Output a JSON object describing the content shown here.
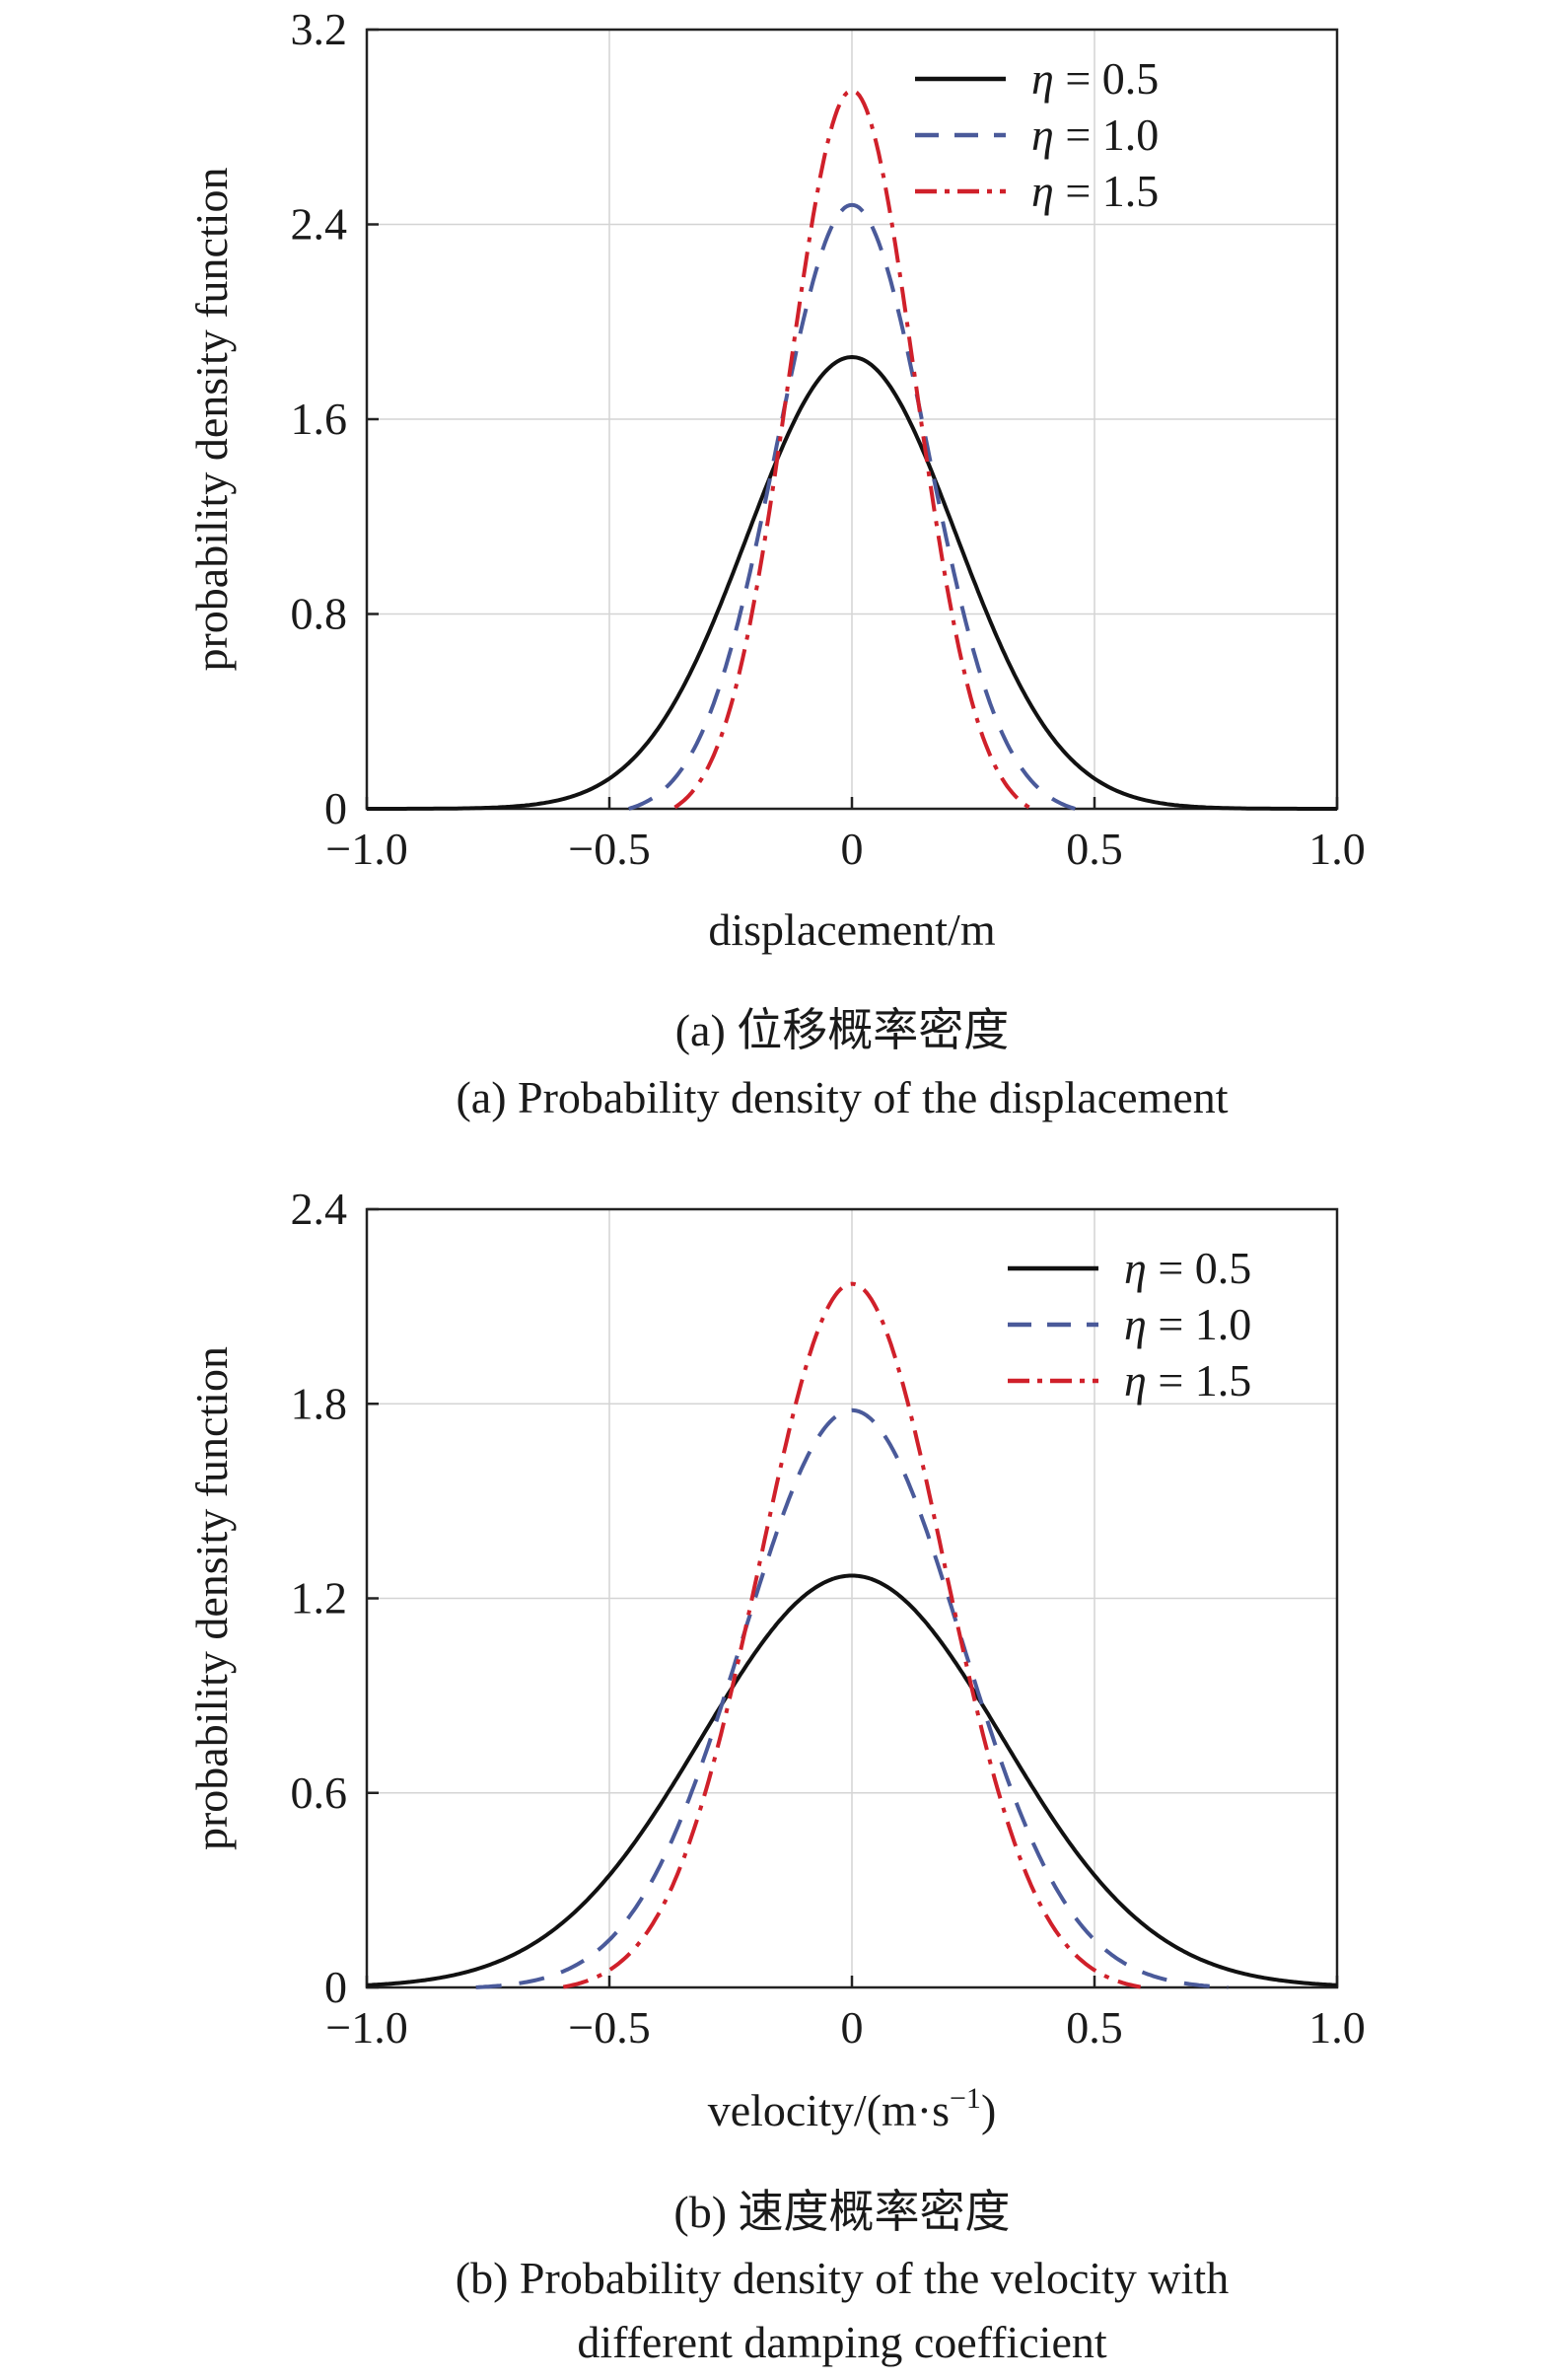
{
  "charts": [
    {
      "id": "a",
      "type": "line",
      "ylabel": "probability density function",
      "xlabel": "displacement/m",
      "xlim": [
        -1.0,
        1.0
      ],
      "ylim": [
        0,
        3.2
      ],
      "xticks": [
        -1.0,
        -0.5,
        0,
        0.5,
        1.0
      ],
      "xtick_labels": [
        "−1.0",
        "−0.5",
        "0",
        "0.5",
        "1.0"
      ],
      "yticks": [
        0,
        0.8,
        1.6,
        2.4,
        3.2
      ],
      "ytick_labels": [
        "0",
        "0.8",
        "1.6",
        "2.4",
        "3.2"
      ],
      "grid": true,
      "legend_position": "top-right",
      "caption_cn": "(a) 位移概率密度",
      "caption_en": "(a) Probability density of the displacement",
      "caption_en_line2": "",
      "series": [
        {
          "name": "η = 0.5",
          "symbol": "η",
          "label_rest": " = 0.5",
          "style": "solid",
          "color": "#111111",
          "sigma": 0.215,
          "peak": 1.855,
          "support": null
        },
        {
          "name": "η = 1.0",
          "symbol": "η",
          "label_rest": " = 1.0",
          "style": "dashed",
          "color": "#4a5a9a",
          "sigma": 0.155,
          "peak": 2.48,
          "support": 0.46
        },
        {
          "name": "η = 1.5",
          "symbol": "η",
          "label_rest": " = 1.5",
          "style": "dashdot",
          "color": "#d0202a",
          "sigma": 0.13,
          "peak": 2.95,
          "support": 0.37
        }
      ]
    },
    {
      "id": "b",
      "type": "line",
      "ylabel": "probability density function",
      "xlabel": "velocity/(m·s",
      "xlabel_sup": "−1",
      "xlabel_end": ")",
      "xlim": [
        -1.0,
        1.0
      ],
      "ylim": [
        0,
        2.4
      ],
      "xticks": [
        -1.0,
        -0.5,
        0,
        0.5,
        1.0
      ],
      "xtick_labels": [
        "−1.0",
        "−0.5",
        "0",
        "0.5",
        "1.0"
      ],
      "yticks": [
        0,
        0.6,
        1.2,
        1.8,
        2.4
      ],
      "ytick_labels": [
        "0",
        "0.6",
        "1.2",
        "1.8",
        "2.4"
      ],
      "grid": true,
      "legend_position": "top-right",
      "caption_cn": "(b) 速度概率密度",
      "caption_en": "(b) Probability density of the velocity with",
      "caption_en_line2": "different damping coefficient",
      "series": [
        {
          "name": "η = 0.5",
          "symbol": "η",
          "label_rest": " = 0.5",
          "style": "solid",
          "color": "#111111",
          "sigma": 0.31,
          "peak": 1.27,
          "support": null
        },
        {
          "name": "η = 1.0",
          "symbol": "η",
          "label_rest": " = 1.0",
          "style": "dashed",
          "color": "#4a5a9a",
          "sigma": 0.225,
          "peak": 1.78,
          "support": 0.78
        },
        {
          "name": "η = 1.5",
          "symbol": "η",
          "label_rest": " = 1.5",
          "style": "dashdot",
          "color": "#d0202a",
          "sigma": 0.19,
          "peak": 2.17,
          "support": 0.6
        }
      ]
    }
  ]
}
